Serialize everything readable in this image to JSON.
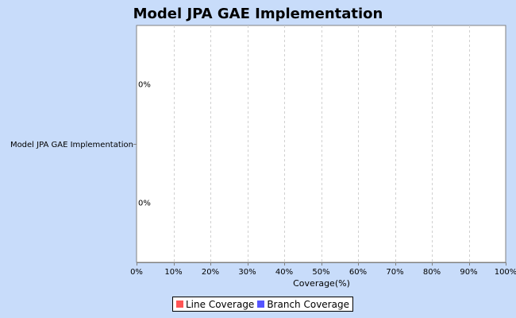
{
  "chart_data": {
    "type": "bar",
    "orientation": "horizontal",
    "title": "Model JPA GAE Implementation",
    "categories": [
      "Model JPA GAE Implementation"
    ],
    "series": [
      {
        "name": "Line Coverage",
        "color": "#ff5555",
        "values": [
          0
        ],
        "labels": [
          "0%"
        ]
      },
      {
        "name": "Branch Coverage",
        "color": "#5555ff",
        "values": [
          0
        ],
        "labels": [
          "0%"
        ]
      }
    ],
    "xlabel": "Coverage(%)",
    "ylabel": "",
    "xlim": [
      0,
      100
    ],
    "xticks": [
      0,
      10,
      20,
      30,
      40,
      50,
      60,
      70,
      80,
      90,
      100
    ],
    "xtick_labels": [
      "0%",
      "10%",
      "20%",
      "30%",
      "40%",
      "50%",
      "60%",
      "70%",
      "80%",
      "90%",
      "100%"
    ],
    "grid": true,
    "legend_position": "bottom-center"
  },
  "colors": {
    "background": "#c8dcfa",
    "plot_background": "#ffffff",
    "gridline": "#d0d0d0"
  }
}
